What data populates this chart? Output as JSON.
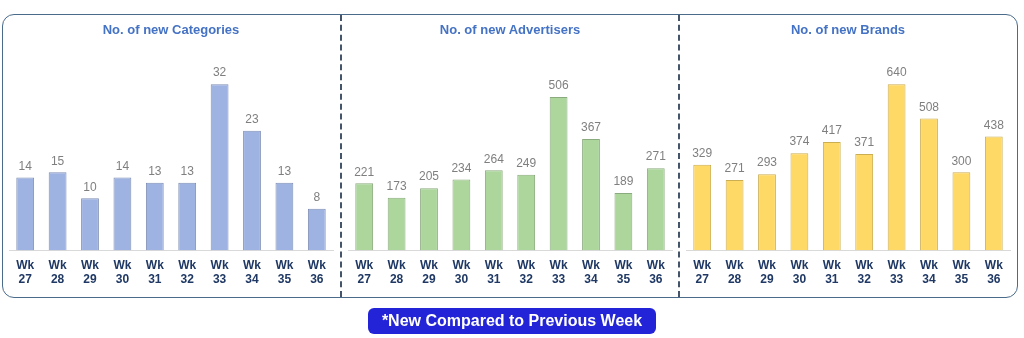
{
  "chart_data": [
    {
      "type": "bar",
      "title": "No. of new Categories",
      "categories": [
        "Wk 27",
        "Wk 28",
        "Wk 29",
        "Wk 30",
        "Wk 31",
        "Wk 32",
        "Wk 33",
        "Wk 34",
        "Wk 35",
        "Wk 36"
      ],
      "values": [
        14,
        15,
        10,
        14,
        13,
        13,
        32,
        23,
        13,
        8
      ],
      "color": "#9fb3e2",
      "data_labels": true,
      "tick_labels": "x",
      "grid": false,
      "legend": false,
      "annotations": [
        "*New Compared to Previous Week"
      ]
    },
    {
      "type": "bar",
      "title": "No. of new Advertisers",
      "categories": [
        "Wk 27",
        "Wk 28",
        "Wk 29",
        "Wk 30",
        "Wk 31",
        "Wk 32",
        "Wk 33",
        "Wk 34",
        "Wk 35",
        "Wk 36"
      ],
      "values": [
        221,
        173,
        205,
        234,
        264,
        249,
        506,
        367,
        189,
        271
      ],
      "color": "#acd69c",
      "data_labels": true,
      "tick_labels": "x",
      "grid": false,
      "legend": false
    },
    {
      "type": "bar",
      "title": "No. of new Brands",
      "categories": [
        "Wk 27",
        "Wk 28",
        "Wk 29",
        "Wk 30",
        "Wk 31",
        "Wk 32",
        "Wk 33",
        "Wk 34",
        "Wk 35",
        "Wk 36"
      ],
      "values": [
        329,
        271,
        293,
        374,
        417,
        371,
        640,
        508,
        300,
        438
      ],
      "color": "#ffd966",
      "data_labels": true,
      "tick_labels": "x",
      "grid": false,
      "legend": false
    }
  ]
}
